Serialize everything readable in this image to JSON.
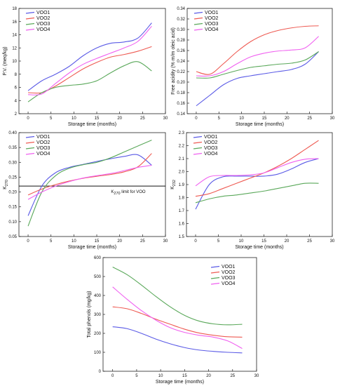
{
  "chart_data": [
    {
      "type": "line",
      "xlabel": "Storage time (months)",
      "ylabel": "P.V. (meq/kg)",
      "xlim": [
        -2,
        30
      ],
      "ylim": [
        2,
        18
      ],
      "xticks": [
        0,
        5,
        10,
        15,
        20,
        25,
        30
      ],
      "yticks": [
        2,
        4,
        6,
        8,
        10,
        12,
        14,
        16,
        18
      ],
      "legend_position": "top-left",
      "series": [
        {
          "name": "VOO1",
          "color": "#5a5ae6",
          "x": [
            0,
            3,
            6,
            9,
            12,
            15,
            18,
            21,
            24,
            27
          ],
          "y": [
            5.5,
            7.0,
            8.0,
            9.2,
            10.8,
            12.0,
            12.7,
            12.9,
            13.5,
            15.8
          ]
        },
        {
          "name": "VOO2",
          "color": "#ee5a52",
          "x": [
            0,
            3,
            6,
            9,
            12,
            15,
            18,
            21,
            24,
            27
          ],
          "y": [
            5.2,
            5.2,
            6.2,
            7.5,
            8.8,
            9.8,
            10.6,
            11.0,
            11.5,
            12.2
          ]
        },
        {
          "name": "VOO3",
          "color": "#5aa85a",
          "x": [
            0,
            3,
            6,
            9,
            12,
            15,
            18,
            21,
            24,
            27
          ],
          "y": [
            3.8,
            5.2,
            6.0,
            6.3,
            6.5,
            7.0,
            8.2,
            9.3,
            9.9,
            8.5
          ]
        },
        {
          "name": "VOO4",
          "color": "#f060f0",
          "x": [
            0,
            3,
            6,
            9,
            12,
            15,
            18,
            21,
            24,
            27
          ],
          "y": [
            4.9,
            5.0,
            6.6,
            8.2,
            9.5,
            10.4,
            11.2,
            12.0,
            13.0,
            15.3
          ]
        }
      ]
    },
    {
      "type": "line",
      "xlabel": "Storage time (months)",
      "ylabel": "Free acidity (% m/m oleic acid)",
      "xlim": [
        -2,
        30
      ],
      "ylim": [
        0.14,
        0.34
      ],
      "xticks": [
        0,
        5,
        10,
        15,
        20,
        25,
        30
      ],
      "yticks": [
        0.14,
        0.16,
        0.18,
        0.2,
        0.22,
        0.24,
        0.26,
        0.28,
        0.3,
        0.32,
        0.34
      ],
      "legend_position": "top-left",
      "series": [
        {
          "name": "VOO1",
          "color": "#5a5ae6",
          "x": [
            0,
            3,
            6,
            9,
            12,
            15,
            18,
            21,
            24,
            27
          ],
          "y": [
            0.155,
            0.175,
            0.195,
            0.207,
            0.212,
            0.216,
            0.22,
            0.224,
            0.234,
            0.258
          ]
        },
        {
          "name": "VOO2",
          "color": "#ee5a52",
          "x": [
            0,
            3,
            6,
            9,
            12,
            15,
            18,
            21,
            24,
            27
          ],
          "y": [
            0.22,
            0.215,
            0.235,
            0.258,
            0.277,
            0.29,
            0.298,
            0.303,
            0.306,
            0.307
          ]
        },
        {
          "name": "VOO3",
          "color": "#5aa85a",
          "x": [
            0,
            3,
            6,
            9,
            12,
            15,
            18,
            21,
            24,
            27
          ],
          "y": [
            0.208,
            0.208,
            0.215,
            0.222,
            0.228,
            0.231,
            0.234,
            0.236,
            0.242,
            0.258
          ]
        },
        {
          "name": "VOO4",
          "color": "#f060f0",
          "x": [
            0,
            3,
            6,
            9,
            12,
            15,
            18,
            21,
            24,
            27
          ],
          "y": [
            0.212,
            0.212,
            0.22,
            0.235,
            0.248,
            0.255,
            0.259,
            0.261,
            0.265,
            0.287
          ]
        }
      ]
    },
    {
      "type": "line",
      "xlabel": "Storage time (months)",
      "ylabel": "K270",
      "xlim": [
        -2,
        30
      ],
      "ylim": [
        0.05,
        0.4
      ],
      "xticks": [
        0,
        5,
        10,
        15,
        20,
        25,
        30
      ],
      "yticks": [
        0.05,
        0.1,
        0.15,
        0.2,
        0.25,
        0.3,
        0.35,
        0.4
      ],
      "legend_position": "top-left",
      "reference_line": {
        "y": 0.22,
        "label": "K270 limit for VOO"
      },
      "series": [
        {
          "name": "VOO1",
          "color": "#5a5ae6",
          "x": [
            0,
            3,
            6,
            9,
            12,
            15,
            18,
            21,
            24,
            27
          ],
          "y": [
            0.12,
            0.22,
            0.265,
            0.283,
            0.293,
            0.303,
            0.312,
            0.32,
            0.325,
            0.29
          ]
        },
        {
          "name": "VOO2",
          "color": "#ee5a52",
          "x": [
            0,
            3,
            6,
            9,
            12,
            15,
            18,
            21,
            24,
            27
          ],
          "y": [
            0.19,
            0.21,
            0.225,
            0.237,
            0.246,
            0.253,
            0.259,
            0.268,
            0.285,
            0.33
          ]
        },
        {
          "name": "VOO3",
          "color": "#5aa85a",
          "x": [
            0,
            3,
            6,
            9,
            12,
            15,
            18,
            21,
            24,
            27
          ],
          "y": [
            0.085,
            0.2,
            0.255,
            0.28,
            0.292,
            0.3,
            0.315,
            0.335,
            0.355,
            0.375
          ]
        },
        {
          "name": "VOO4",
          "color": "#f060f0",
          "x": [
            0,
            3,
            6,
            9,
            12,
            15,
            18,
            21,
            24,
            27
          ],
          "y": [
            0.175,
            0.2,
            0.22,
            0.235,
            0.247,
            0.255,
            0.262,
            0.272,
            0.283,
            0.29
          ]
        }
      ]
    },
    {
      "type": "line",
      "xlabel": "Storage time (months)",
      "ylabel": "K232",
      "xlim": [
        -2,
        30
      ],
      "ylim": [
        1.5,
        2.3
      ],
      "xticks": [
        0,
        5,
        10,
        15,
        20,
        25,
        30
      ],
      "yticks": [
        1.5,
        1.6,
        1.7,
        1.8,
        1.9,
        2.0,
        2.1,
        2.2,
        2.3
      ],
      "legend_position": "top-left",
      "series": [
        {
          "name": "VOO1",
          "color": "#5a5ae6",
          "x": [
            0,
            3,
            6,
            9,
            12,
            15,
            18,
            21,
            24,
            27
          ],
          "y": [
            1.71,
            1.9,
            1.96,
            1.965,
            1.965,
            1.965,
            1.98,
            2.02,
            2.07,
            2.1
          ]
        },
        {
          "name": "VOO2",
          "color": "#ee5a52",
          "x": [
            0,
            3,
            6,
            9,
            12,
            15,
            18,
            21,
            24,
            27
          ],
          "y": [
            1.81,
            1.83,
            1.87,
            1.91,
            1.95,
            1.99,
            2.04,
            2.1,
            2.17,
            2.24
          ]
        },
        {
          "name": "VOO3",
          "color": "#5aa85a",
          "x": [
            0,
            3,
            6,
            9,
            12,
            15,
            18,
            21,
            24,
            27
          ],
          "y": [
            1.76,
            1.79,
            1.81,
            1.82,
            1.835,
            1.85,
            1.87,
            1.89,
            1.91,
            1.91
          ]
        },
        {
          "name": "VOO4",
          "color": "#f060f0",
          "x": [
            0,
            3,
            6,
            9,
            12,
            15,
            18,
            21,
            24,
            27
          ],
          "y": [
            1.89,
            1.96,
            1.97,
            1.97,
            1.975,
            1.99,
            2.03,
            2.07,
            2.095,
            2.1
          ]
        }
      ]
    },
    {
      "type": "line",
      "xlabel": "Storage time (months)",
      "ylabel": "Total phenols (mg/kg)",
      "xlim": [
        -2,
        30
      ],
      "ylim": [
        0,
        600
      ],
      "xticks": [
        0,
        5,
        10,
        15,
        20,
        25,
        30
      ],
      "yticks": [
        0,
        100,
        200,
        300,
        400,
        500,
        600
      ],
      "legend_position": "top-right",
      "series": [
        {
          "name": "VOO1",
          "color": "#5a5ae6",
          "x": [
            0,
            3,
            6,
            9,
            12,
            15,
            18,
            21,
            24,
            27
          ],
          "y": [
            235,
            225,
            200,
            170,
            145,
            125,
            112,
            105,
            100,
            97
          ]
        },
        {
          "name": "VOO2",
          "color": "#ee5a52",
          "x": [
            0,
            3,
            6,
            9,
            12,
            15,
            18,
            21,
            24,
            27
          ],
          "y": [
            340,
            330,
            305,
            275,
            248,
            222,
            202,
            190,
            182,
            180
          ]
        },
        {
          "name": "VOO3",
          "color": "#5aa85a",
          "x": [
            0,
            3,
            6,
            9,
            12,
            15,
            18,
            21,
            24,
            27
          ],
          "y": [
            550,
            510,
            455,
            395,
            340,
            295,
            265,
            250,
            245,
            248
          ]
        },
        {
          "name": "VOO4",
          "color": "#f060f0",
          "x": [
            0,
            3,
            6,
            9,
            12,
            15,
            18,
            21,
            24,
            27
          ],
          "y": [
            445,
            380,
            320,
            270,
            230,
            205,
            190,
            180,
            160,
            120
          ]
        }
      ]
    }
  ]
}
